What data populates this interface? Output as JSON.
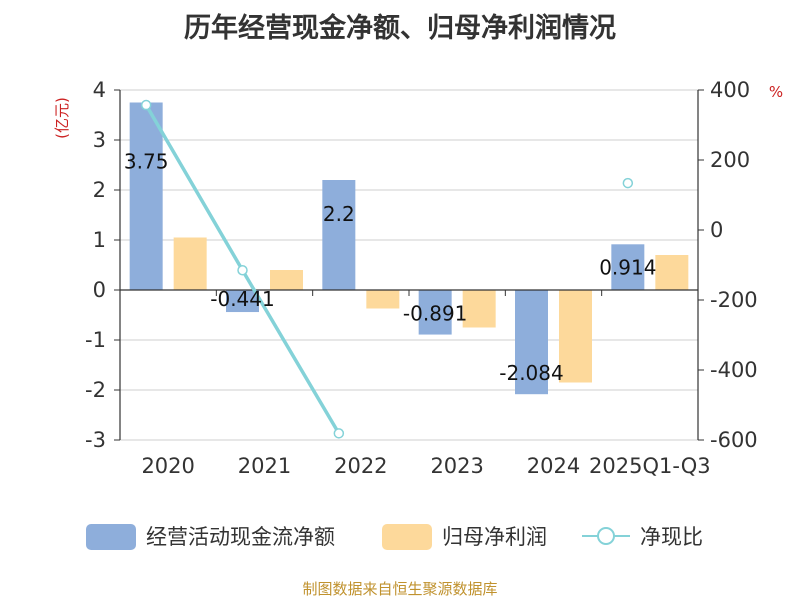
{
  "title": "历年经营现金净额、归母净利润情况",
  "source": "制图数据来自恒生聚源数据库",
  "chart_data": {
    "type": "bar",
    "categories": [
      "2020",
      "2021",
      "2022",
      "2023",
      "2024",
      "2025Q1-Q3"
    ],
    "series": [
      {
        "name": "经营活动现金流净额",
        "kind": "bar",
        "axis": "left",
        "color": "#8eaedb",
        "values": [
          3.75,
          -0.441,
          2.2,
          -0.891,
          -2.084,
          0.914
        ],
        "labels": [
          "3.75",
          "-0.441",
          "2.2",
          "-0.891",
          "-2.084",
          "0.914"
        ]
      },
      {
        "name": "归母净利润",
        "kind": "bar",
        "axis": "left",
        "color": "#fdd99b",
        "values": [
          1.05,
          0.4,
          -0.37,
          -0.75,
          -1.85,
          0.7
        ]
      },
      {
        "name": "净现比",
        "kind": "line",
        "axis": "right",
        "color": "#84d2d8",
        "values": [
          357,
          -115,
          -581,
          null,
          null,
          134
        ]
      }
    ],
    "y_left": {
      "unit": "(亿元)",
      "range": [
        -3,
        4
      ],
      "ticks": [
        "-3",
        "-2",
        "-1",
        "0",
        "1",
        "2",
        "3",
        "4"
      ]
    },
    "y_right": {
      "unit": "%",
      "range": [
        -600,
        400
      ],
      "ticks": [
        "-600",
        "-400",
        "-200",
        "0",
        "200",
        "400"
      ]
    },
    "grid": true,
    "legend": "bottom"
  }
}
